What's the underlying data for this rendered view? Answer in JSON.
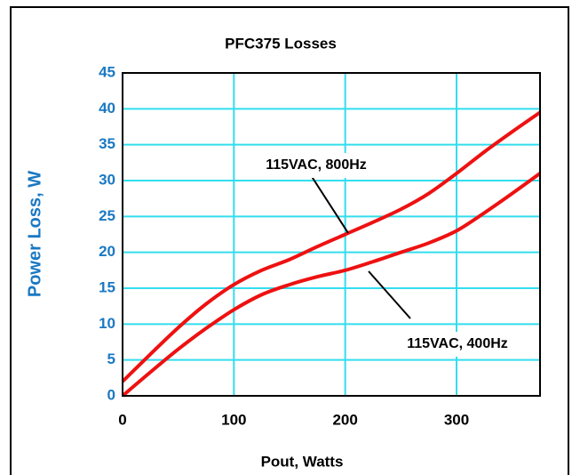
{
  "chart_data": {
    "type": "line",
    "title": "PFC375 Losses",
    "xlabel": "Pout, Watts",
    "ylabel": "Power Loss, W",
    "x": [
      0,
      25,
      50,
      75,
      100,
      125,
      150,
      175,
      200,
      225,
      250,
      275,
      300,
      325,
      350,
      375
    ],
    "series": [
      {
        "name": "115VAC, 800Hz",
        "color": "#ee1111",
        "values": [
          2,
          5.8,
          9.5,
          12.8,
          15.5,
          17.5,
          19,
          20.8,
          22.5,
          24.2,
          26,
          28.2,
          31,
          34,
          36.8,
          39.5
        ]
      },
      {
        "name": "115VAC, 400Hz",
        "color": "#ee1111",
        "values": [
          0,
          3.3,
          6.5,
          9.4,
          12,
          14.1,
          15.5,
          16.6,
          17.5,
          18.7,
          20,
          21.3,
          23,
          25.5,
          28.2,
          31
        ]
      }
    ],
    "xlim": [
      0,
      375
    ],
    "xticks": [
      0,
      100,
      200,
      300
    ],
    "ylim": [
      0,
      45
    ],
    "yticks": [
      0,
      5,
      10,
      15,
      20,
      25,
      30,
      35,
      40,
      45
    ],
    "grid": true,
    "grid_color": "#33ddee"
  }
}
